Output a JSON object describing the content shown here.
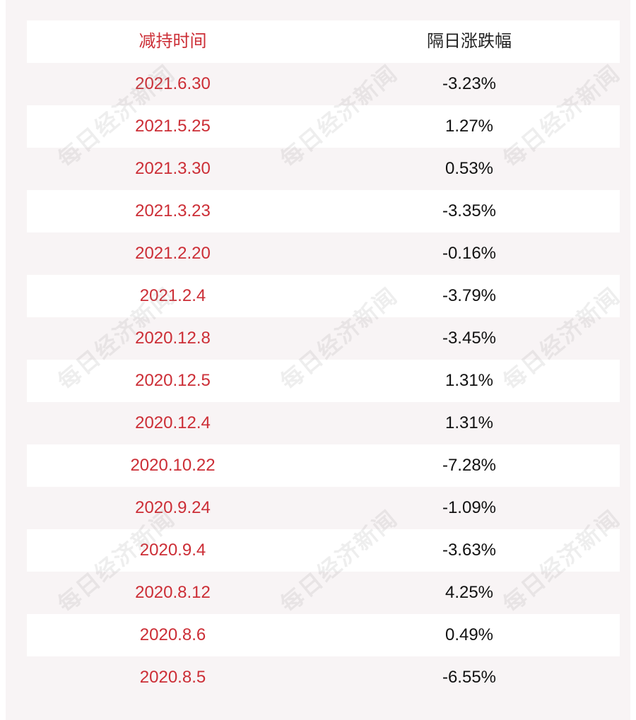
{
  "table": {
    "headers": {
      "date": "减持时间",
      "change": "隔日涨跌幅"
    },
    "rows": [
      {
        "date": "2021.6.30",
        "change": "-3.23%"
      },
      {
        "date": "2021.5.25",
        "change": "1.27%"
      },
      {
        "date": "2021.3.30",
        "change": "0.53%"
      },
      {
        "date": "2021.3.23",
        "change": "-3.35%"
      },
      {
        "date": "2021.2.20",
        "change": "-0.16%"
      },
      {
        "date": "2021.2.4",
        "change": "-3.79%"
      },
      {
        "date": "2020.12.8",
        "change": "-3.45%"
      },
      {
        "date": "2020.12.5",
        "change": "1.31%"
      },
      {
        "date": "2020.12.4",
        "change": "1.31%"
      },
      {
        "date": "2020.10.22",
        "change": "-7.28%"
      },
      {
        "date": "2020.9.24",
        "change": "-1.09%"
      },
      {
        "date": "2020.9.4",
        "change": "-3.63%"
      },
      {
        "date": "2020.8.12",
        "change": "4.25%"
      },
      {
        "date": "2020.8.6",
        "change": "0.49%"
      },
      {
        "date": "2020.8.5",
        "change": "-6.55%"
      }
    ]
  },
  "watermark": {
    "text": "每日经济新闻"
  },
  "colors": {
    "date_text": "#cc2e36",
    "change_text": "#111111",
    "panel_background": "#f8f4f5",
    "row_white": "#ffffff"
  }
}
